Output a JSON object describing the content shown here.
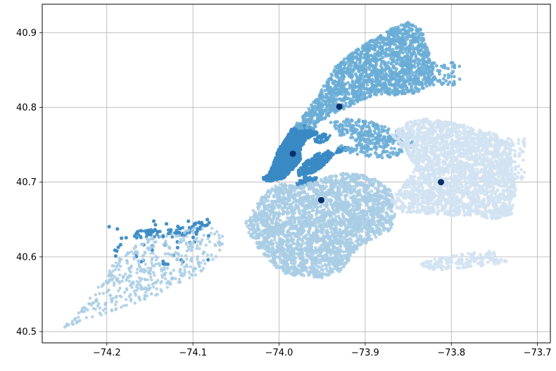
{
  "chart_data": {
    "type": "scatter",
    "title": "",
    "xlabel": "",
    "ylabel": "",
    "xlim": [
      -74.275,
      -73.685
    ],
    "ylim": [
      40.485,
      40.938
    ],
    "grid": true,
    "legend": "none",
    "xticks": [
      {
        "value": -74.2,
        "label": "−74.2"
      },
      {
        "value": -74.1,
        "label": "−74.1"
      },
      {
        "value": -74.0,
        "label": "−74.0"
      },
      {
        "value": -73.9,
        "label": "−73.9"
      },
      {
        "value": -73.8,
        "label": "−73.8"
      },
      {
        "value": -73.7,
        "label": "−73.7"
      }
    ],
    "yticks": [
      {
        "value": 40.5,
        "label": "40.5"
      },
      {
        "value": 40.6,
        "label": "40.6"
      },
      {
        "value": 40.7,
        "label": "40.7"
      },
      {
        "value": 40.8,
        "label": "40.8"
      },
      {
        "value": 40.9,
        "label": "40.9"
      }
    ],
    "clusters": [
      {
        "color": "#3a8ac4",
        "centroid": [
          -73.984,
          40.738
        ],
        "regions": [
          {
            "shape": "polygon",
            "count": 1300,
            "size": 2.4,
            "opacity": 0.9,
            "points": [
              [
                -74.02,
                40.705
              ],
              [
                -74.012,
                40.71
              ],
              [
                -74.0,
                40.745
              ],
              [
                -73.99,
                40.762
              ],
              [
                -73.985,
                40.772
              ],
              [
                -73.975,
                40.778
              ],
              [
                -73.962,
                40.773
              ],
              [
                -73.955,
                40.765
              ],
              [
                -73.968,
                40.758
              ],
              [
                -73.975,
                40.745
              ],
              [
                -73.975,
                40.73
              ],
              [
                -73.985,
                40.716
              ],
              [
                -73.995,
                40.705
              ],
              [
                -74.012,
                40.7
              ]
            ]
          },
          {
            "shape": "polygon",
            "count": 260,
            "size": 2.4,
            "opacity": 0.9,
            "points": [
              [
                -73.978,
                40.708
              ],
              [
                -73.96,
                40.712
              ],
              [
                -73.945,
                40.725
              ],
              [
                -73.937,
                40.737
              ],
              [
                -73.942,
                40.742
              ],
              [
                -73.955,
                40.738
              ],
              [
                -73.97,
                40.727
              ],
              [
                -73.978,
                40.715
              ]
            ]
          },
          {
            "shape": "polygon",
            "count": 80,
            "size": 2.4,
            "opacity": 0.9,
            "points": [
              [
                -73.98,
                40.693
              ],
              [
                -73.96,
                40.7
              ],
              [
                -73.955,
                40.706
              ],
              [
                -73.97,
                40.707
              ],
              [
                -73.98,
                40.699
              ]
            ]
          },
          {
            "shape": "polygon",
            "count": 45,
            "size": 2.2,
            "opacity": 0.9,
            "points": [
              [
                -73.96,
                40.75
              ],
              [
                -73.945,
                40.755
              ],
              [
                -73.94,
                40.763
              ],
              [
                -73.95,
                40.765
              ],
              [
                -73.96,
                40.758
              ]
            ]
          },
          {
            "shape": "polygon",
            "count": 40,
            "size": 2.2,
            "opacity": 0.9,
            "points": [
              [
                -73.935,
                40.738
              ],
              [
                -73.922,
                40.742
              ],
              [
                -73.918,
                40.748
              ],
              [
                -73.93,
                40.748
              ]
            ]
          },
          {
            "shape": "polygon",
            "count": 80,
            "size": 2.4,
            "opacity": 0.9,
            "points": [
              [
                -74.17,
                40.625
              ],
              [
                -74.165,
                40.635
              ],
              [
                -74.15,
                40.637
              ],
              [
                -74.13,
                40.636
              ],
              [
                -74.108,
                40.64
              ],
              [
                -74.092,
                40.648
              ],
              [
                -74.082,
                40.645
              ],
              [
                -74.085,
                40.636
              ],
              [
                -74.1,
                40.63
              ],
              [
                -74.12,
                40.626
              ],
              [
                -74.14,
                40.624
              ]
            ]
          },
          {
            "shape": "scatter",
            "count": 50,
            "size": 2.6,
            "opacity": 0.95,
            "box": [
              -74.2,
              40.59,
              -74.08,
              40.65
            ]
          }
        ]
      },
      {
        "color": "#6aadd6",
        "centroid": [
          -73.93,
          40.801
        ],
        "regions": [
          {
            "shape": "polygon",
            "count": 1700,
            "size": 2.4,
            "opacity": 0.85,
            "points": [
              [
                -73.985,
                40.775
              ],
              [
                -73.972,
                40.79
              ],
              [
                -73.958,
                40.81
              ],
              [
                -73.945,
                40.835
              ],
              [
                -73.935,
                40.855
              ],
              [
                -73.915,
                40.873
              ],
              [
                -73.9,
                40.885
              ],
              [
                -73.885,
                40.895
              ],
              [
                -73.87,
                40.905
              ],
              [
                -73.85,
                40.914
              ],
              [
                -73.835,
                40.905
              ],
              [
                -73.83,
                40.89
              ],
              [
                -73.825,
                40.87
              ],
              [
                -73.82,
                40.85
              ],
              [
                -73.82,
                40.83
              ],
              [
                -73.84,
                40.82
              ],
              [
                -73.86,
                40.815
              ],
              [
                -73.88,
                40.818
              ],
              [
                -73.9,
                40.812
              ],
              [
                -73.92,
                40.8
              ],
              [
                -73.94,
                40.79
              ],
              [
                -73.955,
                40.778
              ],
              [
                -73.96,
                40.77
              ],
              [
                -73.972,
                40.77
              ]
            ]
          },
          {
            "shape": "polygon",
            "count": 200,
            "size": 2.4,
            "opacity": 0.85,
            "points": [
              [
                -73.94,
                40.78
              ],
              [
                -73.92,
                40.785
              ],
              [
                -73.9,
                40.783
              ],
              [
                -73.87,
                40.772
              ],
              [
                -73.85,
                40.766
              ],
              [
                -73.855,
                40.758
              ],
              [
                -73.88,
                40.752
              ],
              [
                -73.9,
                40.752
              ],
              [
                -73.92,
                40.758
              ],
              [
                -73.935,
                40.765
              ]
            ]
          },
          {
            "shape": "polygon",
            "count": 150,
            "size": 2.4,
            "opacity": 0.85,
            "points": [
              [
                -73.93,
                40.748
              ],
              [
                -73.9,
                40.755
              ],
              [
                -73.88,
                40.76
              ],
              [
                -73.86,
                40.765
              ],
              [
                -73.842,
                40.763
              ],
              [
                -73.84,
                40.752
              ],
              [
                -73.86,
                40.735
              ],
              [
                -73.88,
                40.732
              ],
              [
                -73.9,
                40.734
              ],
              [
                -73.92,
                40.738
              ]
            ]
          },
          {
            "shape": "scatter",
            "count": 60,
            "size": 2.4,
            "opacity": 0.9,
            "box": [
              -73.83,
              40.83,
              -73.79,
              40.86
            ]
          }
        ]
      },
      {
        "color": "#a8cde4",
        "centroid": [
          -73.951,
          40.676
        ],
        "regions": [
          {
            "shape": "polygon",
            "count": 2600,
            "size": 2.4,
            "opacity": 0.85,
            "points": [
              [
                -74.02,
                40.68
              ],
              [
                -74.04,
                40.645
              ],
              [
                -74.03,
                40.62
              ],
              [
                -74.01,
                40.59
              ],
              [
                -73.99,
                40.576
              ],
              [
                -73.95,
                40.572
              ],
              [
                -73.93,
                40.578
              ],
              [
                -73.91,
                40.61
              ],
              [
                -73.89,
                40.625
              ],
              [
                -73.87,
                40.635
              ],
              [
                -73.865,
                40.66
              ],
              [
                -73.87,
                40.69
              ],
              [
                -73.89,
                40.705
              ],
              [
                -73.905,
                40.71
              ],
              [
                -73.925,
                40.712
              ],
              [
                -73.945,
                40.708
              ],
              [
                -73.96,
                40.7
              ],
              [
                -73.98,
                40.695
              ],
              [
                -73.995,
                40.7
              ],
              [
                -74.01,
                40.692
              ]
            ]
          },
          {
            "shape": "polygon",
            "count": 450,
            "size": 2.2,
            "opacity": 0.85,
            "points": [
              [
                -74.25,
                40.505
              ],
              [
                -74.2,
                40.525
              ],
              [
                -74.15,
                40.545
              ],
              [
                -74.12,
                40.56
              ],
              [
                -74.09,
                40.58
              ],
              [
                -74.07,
                40.6
              ],
              [
                -74.06,
                40.62
              ],
              [
                -74.075,
                40.64
              ],
              [
                -74.1,
                40.64
              ],
              [
                -74.13,
                40.63
              ],
              [
                -74.16,
                40.622
              ],
              [
                -74.19,
                40.595
              ],
              [
                -74.21,
                40.56
              ],
              [
                -74.24,
                40.52
              ]
            ]
          }
        ]
      },
      {
        "color": "#d2e2f2",
        "centroid": [
          -73.812,
          40.7
        ],
        "regions": [
          {
            "shape": "polygon",
            "count": 2400,
            "size": 2.4,
            "opacity": 0.9,
            "points": [
              [
                -73.87,
                40.765
              ],
              [
                -73.86,
                40.75
              ],
              [
                -73.85,
                40.735
              ],
              [
                -73.84,
                40.72
              ],
              [
                -73.85,
                40.705
              ],
              [
                -73.86,
                40.69
              ],
              [
                -73.87,
                40.675
              ],
              [
                -73.86,
                40.66
              ],
              [
                -73.82,
                40.657
              ],
              [
                -73.8,
                40.655
              ],
              [
                -73.77,
                40.655
              ],
              [
                -73.75,
                40.65
              ],
              [
                -73.73,
                40.657
              ],
              [
                -73.725,
                40.69
              ],
              [
                -73.73,
                40.72
              ],
              [
                -73.73,
                40.75
              ],
              [
                -73.75,
                40.765
              ],
              [
                -73.78,
                40.775
              ],
              [
                -73.8,
                40.78
              ],
              [
                -73.83,
                40.785
              ],
              [
                -73.85,
                40.78
              ]
            ]
          },
          {
            "shape": "polygon",
            "count": 160,
            "size": 2.4,
            "opacity": 0.9,
            "points": [
              [
                -73.84,
                40.59
              ],
              [
                -73.81,
                40.6
              ],
              [
                -73.78,
                40.605
              ],
              [
                -73.75,
                40.608
              ],
              [
                -73.735,
                40.593
              ],
              [
                -73.76,
                40.588
              ],
              [
                -73.79,
                40.585
              ],
              [
                -73.82,
                40.582
              ]
            ]
          },
          {
            "shape": "scatter",
            "count": 70,
            "size": 2.4,
            "opacity": 0.9,
            "box": [
              -73.74,
              40.7,
              -73.715,
              40.76
            ]
          }
        ]
      }
    ]
  }
}
